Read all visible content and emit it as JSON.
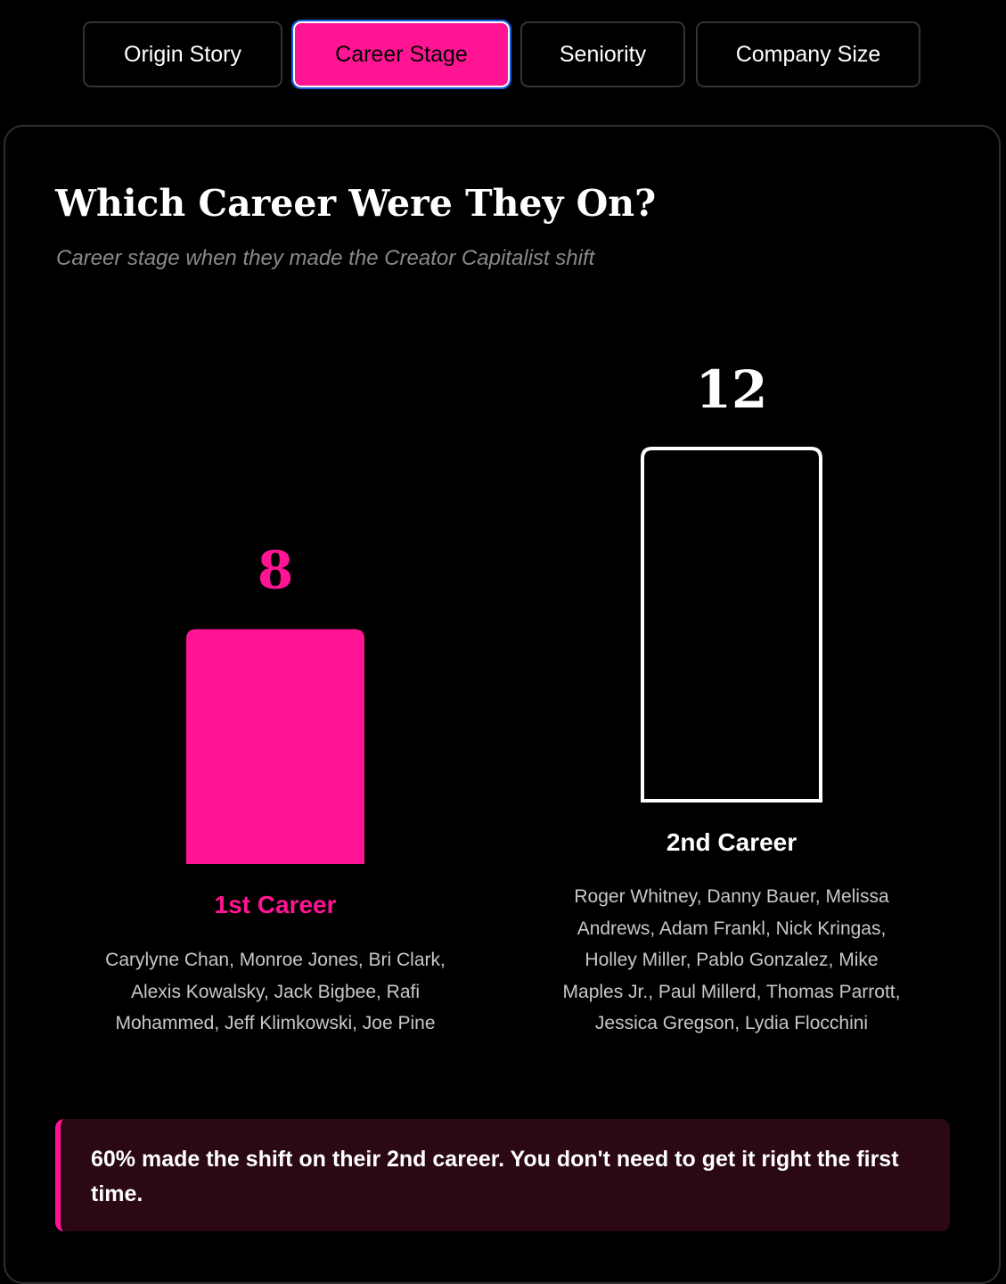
{
  "tabs": [
    {
      "label": "Origin Story",
      "active": false
    },
    {
      "label": "Career Stage",
      "active": true
    },
    {
      "label": "Seniority",
      "active": false
    },
    {
      "label": "Company Size",
      "active": false
    }
  ],
  "colors": {
    "accent": "#ff1493",
    "background": "#000000",
    "highlight_fill": "#ff1493",
    "outline_bar_stroke": "#ffffff",
    "callout_bg": "#2a0816"
  },
  "chart_data": {
    "type": "bar",
    "title": "Which Career Were They On?",
    "subtitle": "Career stage when they made the Creator Capitalist shift",
    "categories": [
      "1st Career",
      "2nd Career"
    ],
    "values": [
      8,
      12
    ],
    "value_labels": [
      "8",
      "12"
    ],
    "ylim": [
      0,
      12
    ],
    "grid": false,
    "names": [
      "Carylyne Chan, Monroe Jones, Bri Clark, Alexis Kowalsky, Jack Bigbee, Rafi Mohammed, Jeff Klimkowski, Joe Pine",
      "Roger Whitney, Danny Bauer, Melissa Andrews, Adam Frankl, Nick Kringas, Holley Miller, Pablo Gonzalez, Mike Maples Jr., Paul Millerd, Thomas Parrott, Jessica Gregson, Lydia Flocchini"
    ]
  },
  "callout": {
    "text": "60% made the shift on their 2nd career. You don't need to get it right the first time."
  }
}
